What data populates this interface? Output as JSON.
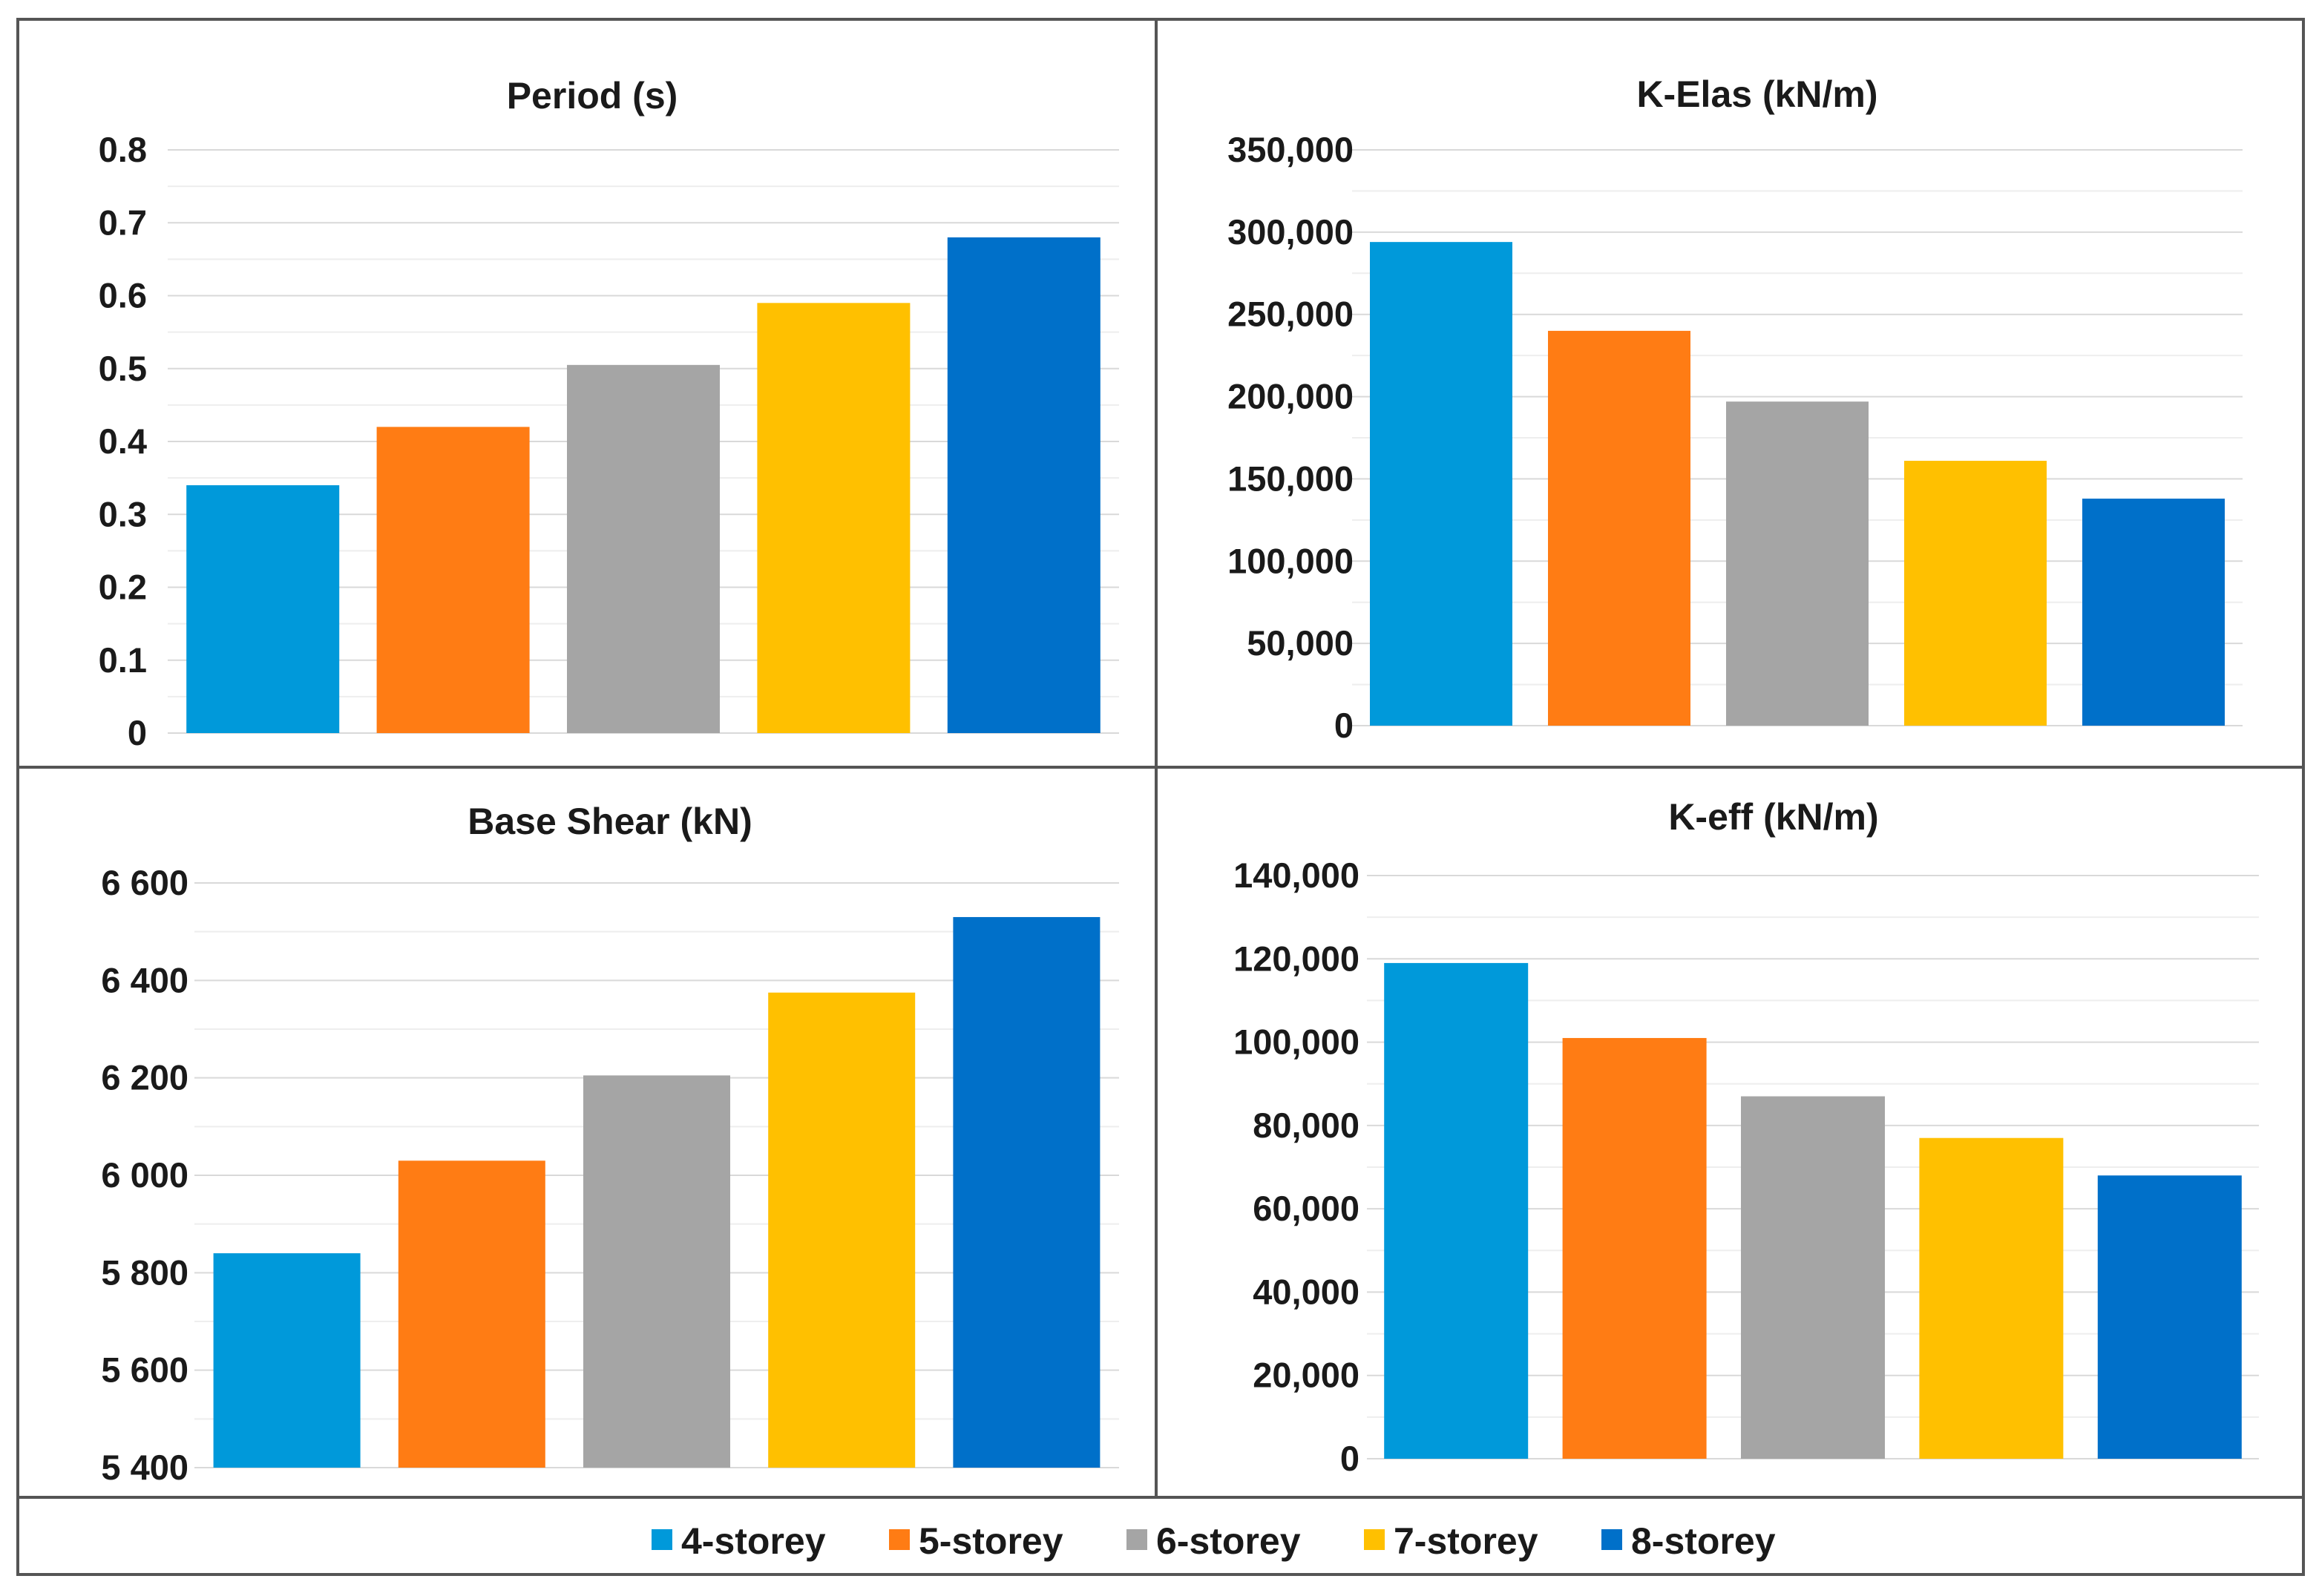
{
  "legend": [
    {
      "label": "4-storey",
      "color": "#0099DA"
    },
    {
      "label": "5-storey",
      "color": "#FF7C14"
    },
    {
      "label": "6-storey",
      "color": "#A5A5A5"
    },
    {
      "label": "7-storey",
      "color": "#FFC000"
    },
    {
      "label": "8-storey",
      "color": "#0070C9"
    }
  ],
  "chart_data": [
    {
      "type": "bar",
      "title": "Period (s)",
      "categories": [
        "4-storey",
        "5-storey",
        "6-storey",
        "7-storey",
        "8-storey"
      ],
      "values": [
        0.34,
        0.42,
        0.505,
        0.59,
        0.68
      ],
      "ylim": [
        0,
        0.8
      ],
      "yticks": [
        "0",
        "0.1",
        "0.2",
        "0.3",
        "0.4",
        "0.5",
        "0.6",
        "0.7",
        "0.8"
      ],
      "grid": true
    },
    {
      "type": "bar",
      "title": "K-Elas (kN/m)",
      "categories": [
        "4-storey",
        "5-storey",
        "6-storey",
        "7-storey",
        "8-storey"
      ],
      "values": [
        294000,
        240000,
        197000,
        161000,
        138000
      ],
      "ylim": [
        0,
        350000
      ],
      "yticks": [
        "0",
        "50,000",
        "100,000",
        "150,000",
        "200,000",
        "250,000",
        "300,000",
        "350,000"
      ],
      "grid": true
    },
    {
      "type": "bar",
      "title": "Base Shear (kN)",
      "categories": [
        "4-storey",
        "5-storey",
        "6-storey",
        "7-storey",
        "8-storey"
      ],
      "values": [
        5840,
        6030,
        6205,
        6375,
        6530
      ],
      "ylim": [
        5400,
        6600
      ],
      "yticks": [
        "5 400",
        "5 600",
        "5 800",
        "6 000",
        "6 200",
        "6 400",
        "6 600"
      ],
      "grid": true
    },
    {
      "type": "bar",
      "title": "K-eff (kN/m)",
      "categories": [
        "4-storey",
        "5-storey",
        "6-storey",
        "7-storey",
        "8-storey"
      ],
      "values": [
        119000,
        101000,
        87000,
        77000,
        68000
      ],
      "ylim": [
        0,
        140000
      ],
      "yticks": [
        "0",
        "20,000",
        "40,000",
        "60,000",
        "80,000",
        "100,000",
        "120,000",
        "140,000"
      ],
      "grid": true
    }
  ]
}
